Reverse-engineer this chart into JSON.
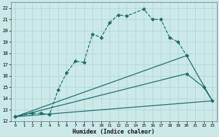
{
  "xlabel": "Humidex (Indice chaleur)",
  "bg_color": "#cce9e9",
  "grid_color": "#aad0d0",
  "line_color": "#1a6b6b",
  "xlim": [
    -0.5,
    23.5
  ],
  "ylim": [
    12,
    22.5
  ],
  "xticks": [
    0,
    1,
    2,
    3,
    4,
    5,
    6,
    7,
    8,
    9,
    10,
    11,
    12,
    13,
    14,
    15,
    16,
    17,
    18,
    19,
    20,
    21,
    22,
    23
  ],
  "yticks": [
    12,
    13,
    14,
    15,
    16,
    17,
    18,
    19,
    20,
    21,
    22
  ],
  "series": [
    {
      "x": [
        0,
        2,
        3,
        4,
        5,
        6,
        7,
        8,
        9,
        10,
        11,
        12,
        13,
        15,
        16,
        17,
        18,
        19,
        20
      ],
      "y": [
        12.4,
        12.7,
        12.7,
        12.6,
        14.8,
        16.3,
        17.3,
        17.2,
        19.7,
        19.4,
        20.7,
        21.4,
        21.3,
        21.9,
        21.0,
        21.0,
        19.4,
        19.0,
        17.8
      ],
      "style": "--",
      "marker": "D",
      "markersize": 2.5,
      "linewidth": 0.9
    },
    {
      "x": [
        0,
        23
      ],
      "y": [
        12.4,
        13.8
      ],
      "style": "-",
      "marker": null,
      "markersize": 0,
      "linewidth": 0.9
    },
    {
      "x": [
        0,
        20,
        22,
        23
      ],
      "y": [
        12.4,
        16.2,
        15.0,
        13.8
      ],
      "style": "-",
      "marker": "D",
      "markersize": 2.5,
      "linewidth": 0.9
    },
    {
      "x": [
        0,
        20,
        23
      ],
      "y": [
        12.4,
        17.8,
        13.8
      ],
      "style": "-",
      "marker": null,
      "markersize": 0,
      "linewidth": 0.9
    }
  ]
}
